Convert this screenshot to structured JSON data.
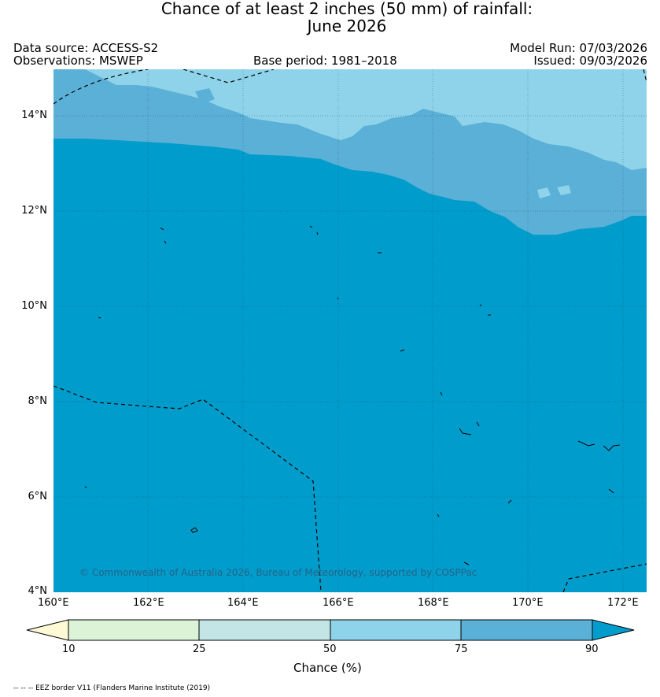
{
  "title": {
    "line1": "Chance of at least 2 inches (50  mm) of rainfall:",
    "line2": "June 2026"
  },
  "header": {
    "data_source": "Data source: ACCESS-S2",
    "observations": "Observations: MSWEP",
    "base_period": "Base period: 1981–2018",
    "model_run": "Model Run: 07/03/2026",
    "issued": "Issued: 09/03/2026"
  },
  "map": {
    "lat_labels": [
      "14°N",
      "12°N",
      "10°N",
      "8°N",
      "6°N",
      "4°N"
    ],
    "lon_labels": [
      "160°E",
      "162°E",
      "164°E",
      "166°E",
      "168°E",
      "170°E",
      "172°E"
    ],
    "copyright": "© Commonwealth of Australia 2026, Bureau of Meteorology, supported by COSPPac",
    "colors": {
      "band_50_75": "#8fd3ea",
      "band_75_90": "#5ab0d6",
      "band_90_plus": "#009ccb"
    }
  },
  "colorbar": {
    "ticks": [
      "10",
      "25",
      "50",
      "75",
      "90"
    ],
    "label": "Chance (%)",
    "colors": [
      "#fff9d6",
      "#dcf3d8",
      "#c3e5e5",
      "#8fd3ea",
      "#5ab0d6",
      "#009ccb"
    ]
  },
  "footnote": "-- -- -- EEZ border V11 (Flanders Marine Institute (2019)"
}
